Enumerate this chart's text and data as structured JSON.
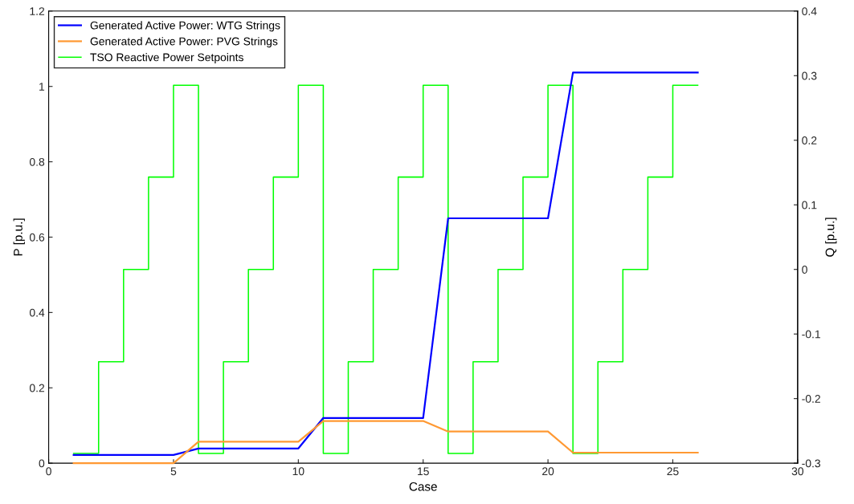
{
  "chart_data": {
    "type": "line",
    "xlabel": "Case",
    "ylabel": "P [p.u.]",
    "y2label": "Q [p.u.]",
    "x": [
      1,
      2,
      3,
      4,
      5,
      6,
      7,
      8,
      9,
      10,
      11,
      12,
      13,
      14,
      15,
      16,
      17,
      18,
      19,
      20,
      21,
      22,
      23,
      24,
      25,
      26
    ],
    "series": [
      {
        "name": "Generated Active Power: WTG Strings",
        "color": "#0000ff",
        "values": [
          0.022,
          0.022,
          0.022,
          0.022,
          0.022,
          0.039,
          0.039,
          0.039,
          0.039,
          0.039,
          0.12,
          0.12,
          0.12,
          0.12,
          0.12,
          0.65,
          0.65,
          0.65,
          0.65,
          0.65,
          1.037,
          1.037,
          1.037,
          1.037,
          1.037,
          1.037
        ]
      },
      {
        "name": "Generated Active Power: PVG Strings",
        "color": "#ff9933",
        "values": [
          0,
          0,
          0,
          0,
          0,
          0.057,
          0.057,
          0.057,
          0.057,
          0.057,
          0.112,
          0.112,
          0.112,
          0.112,
          0.112,
          0.084,
          0.084,
          0.084,
          0.084,
          0.084,
          0.028,
          0.028,
          0.028,
          0.028,
          0.028,
          0.028
        ]
      },
      {
        "name": "TSO Reactive Power Setpoints",
        "color": "#00ff00",
        "type": "step",
        "axis": "y2",
        "values": [
          -0.285,
          -0.143,
          0,
          0.143,
          0.285,
          -0.285,
          -0.143,
          0,
          0.143,
          0.285,
          -0.285,
          -0.143,
          0,
          0.143,
          0.285,
          -0.285,
          -0.143,
          0,
          0.143,
          0.285,
          -0.285,
          -0.143,
          0,
          0.143,
          0.285,
          0.285
        ]
      }
    ],
    "xlim": [
      0,
      30
    ],
    "xticks": [
      0,
      5,
      10,
      15,
      20,
      25,
      30
    ],
    "ylim": [
      0,
      1.2
    ],
    "yticks": [
      0,
      0.2,
      0.4,
      0.6,
      0.8,
      1,
      1.2
    ],
    "y2lim": [
      -0.3,
      0.4
    ],
    "y2ticks": [
      {
        "value": -0.3,
        "label": "-0.3"
      },
      {
        "value": -0.2,
        "label": "-0.2"
      },
      {
        "value": -0.1,
        "label": "-0.1"
      },
      0,
      0.1,
      0.2,
      0.3,
      0.4
    ],
    "legend": "top left",
    "grid": false,
    "marker": "none",
    "line_style": "solid"
  }
}
